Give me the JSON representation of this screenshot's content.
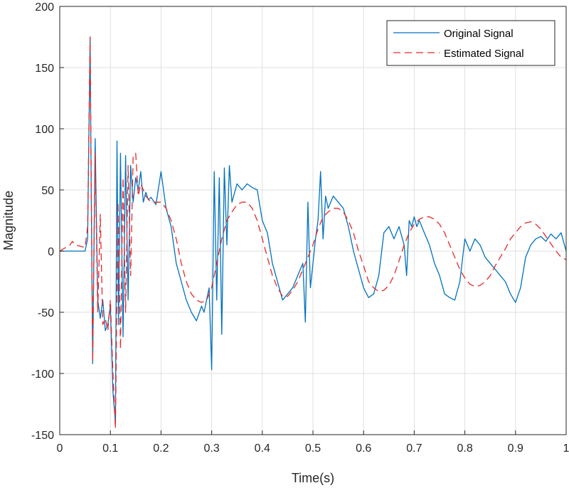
{
  "chart_data": {
    "type": "line",
    "title": "",
    "xlabel": "Time(s)",
    "ylabel": "Magnitude",
    "xlim": [
      0,
      1
    ],
    "ylim": [
      -150,
      200
    ],
    "xticks": [
      0,
      0.1,
      0.2,
      0.3,
      0.4,
      0.5,
      0.6,
      0.7,
      0.8,
      0.9,
      1
    ],
    "xtick_labels": [
      "0",
      "0.1",
      "0.2",
      "0.3",
      "0.4",
      "0.5",
      "0.6",
      "0.7",
      "0.8",
      "0.9",
      "1"
    ],
    "yticks": [
      -150,
      -100,
      -50,
      0,
      50,
      100,
      150,
      200
    ],
    "ytick_labels": [
      "-150",
      "-100",
      "-50",
      "0",
      "50",
      "100",
      "150",
      "200"
    ],
    "grid": true,
    "legend_position": "top-right",
    "colors": {
      "original": "#0072BD",
      "estimated": "#E8282B",
      "grid": "#DFDFDF",
      "axis": "#262626"
    },
    "series": [
      {
        "name": "Original Signal",
        "style": "solid",
        "color": "#0072BD",
        "x": [
          0,
          0.05,
          0.055,
          0.06,
          0.062,
          0.065,
          0.07,
          0.075,
          0.08,
          0.085,
          0.09,
          0.095,
          0.1,
          0.105,
          0.11,
          0.113,
          0.116,
          0.12,
          0.125,
          0.13,
          0.135,
          0.14,
          0.145,
          0.15,
          0.155,
          0.16,
          0.165,
          0.17,
          0.175,
          0.18,
          0.19,
          0.2,
          0.21,
          0.22,
          0.23,
          0.24,
          0.25,
          0.26,
          0.27,
          0.28,
          0.285,
          0.29,
          0.295,
          0.3,
          0.305,
          0.31,
          0.315,
          0.32,
          0.325,
          0.33,
          0.335,
          0.34,
          0.35,
          0.36,
          0.37,
          0.38,
          0.39,
          0.4,
          0.41,
          0.42,
          0.43,
          0.44,
          0.45,
          0.46,
          0.47,
          0.48,
          0.485,
          0.49,
          0.495,
          0.5,
          0.505,
          0.51,
          0.515,
          0.52,
          0.525,
          0.53,
          0.54,
          0.55,
          0.56,
          0.57,
          0.58,
          0.59,
          0.6,
          0.61,
          0.62,
          0.63,
          0.64,
          0.65,
          0.66,
          0.67,
          0.68,
          0.685,
          0.69,
          0.695,
          0.7,
          0.705,
          0.71,
          0.72,
          0.73,
          0.74,
          0.75,
          0.76,
          0.77,
          0.78,
          0.79,
          0.8,
          0.81,
          0.82,
          0.83,
          0.84,
          0.85,
          0.86,
          0.87,
          0.88,
          0.89,
          0.9,
          0.91,
          0.92,
          0.93,
          0.94,
          0.95,
          0.96,
          0.97,
          0.98,
          0.99,
          1
        ],
        "y": [
          0,
          0,
          10,
          175,
          60,
          -92,
          92,
          -40,
          -55,
          -40,
          -65,
          -60,
          -45,
          -115,
          -140,
          90,
          -60,
          80,
          -70,
          78,
          -40,
          70,
          40,
          60,
          50,
          65,
          40,
          48,
          42,
          44,
          38,
          65,
          35,
          20,
          -10,
          -25,
          -40,
          -50,
          -57,
          -45,
          -50,
          -40,
          -30,
          -97,
          65,
          -40,
          60,
          -68,
          68,
          5,
          70,
          40,
          55,
          50,
          55,
          52,
          50,
          25,
          15,
          -10,
          -25,
          -40,
          -35,
          -30,
          -20,
          -10,
          -58,
          40,
          -30,
          -10,
          10,
          25,
          65,
          10,
          45,
          35,
          45,
          40,
          35,
          20,
          0,
          -15,
          -30,
          -38,
          -35,
          -20,
          15,
          20,
          10,
          20,
          5,
          -20,
          25,
          20,
          28,
          20,
          25,
          15,
          5,
          -10,
          -20,
          -35,
          -38,
          -40,
          -25,
          10,
          0,
          10,
          5,
          -5,
          -10,
          -15,
          -20,
          -25,
          -35,
          -42,
          -30,
          -5,
          5,
          10,
          12,
          8,
          14,
          10,
          15,
          0
        ],
        "y_alt": null
      },
      {
        "name": "Estimated Signal",
        "style": "dashed",
        "color": "#E8282B",
        "x": [
          0,
          0.02,
          0.025,
          0.03,
          0.05,
          0.055,
          0.06,
          0.065,
          0.07,
          0.075,
          0.08,
          0.085,
          0.09,
          0.095,
          0.1,
          0.105,
          0.11,
          0.115,
          0.12,
          0.125,
          0.13,
          0.135,
          0.14,
          0.145,
          0.15,
          0.155,
          0.16,
          0.165,
          0.17,
          0.18,
          0.19,
          0.2,
          0.21,
          0.22,
          0.23,
          0.24,
          0.25,
          0.26,
          0.27,
          0.28,
          0.29,
          0.3,
          0.31,
          0.32,
          0.33,
          0.34,
          0.35,
          0.36,
          0.37,
          0.38,
          0.39,
          0.4,
          0.41,
          0.42,
          0.43,
          0.44,
          0.45,
          0.46,
          0.47,
          0.48,
          0.49,
          0.5,
          0.51,
          0.52,
          0.53,
          0.54,
          0.55,
          0.56,
          0.57,
          0.58,
          0.59,
          0.6,
          0.61,
          0.62,
          0.63,
          0.64,
          0.65,
          0.66,
          0.67,
          0.68,
          0.69,
          0.7,
          0.71,
          0.72,
          0.73,
          0.74,
          0.75,
          0.76,
          0.77,
          0.78,
          0.79,
          0.8,
          0.81,
          0.82,
          0.83,
          0.84,
          0.85,
          0.86,
          0.87,
          0.88,
          0.89,
          0.9,
          0.91,
          0.92,
          0.93,
          0.94,
          0.95,
          0.96,
          0.97,
          0.98,
          0.99,
          1
        ],
        "y": [
          0,
          5,
          8,
          5,
          3,
          20,
          175,
          -90,
          80,
          -50,
          30,
          -60,
          -55,
          -65,
          -40,
          -100,
          -145,
          40,
          -80,
          60,
          -50,
          70,
          -20,
          78,
          80,
          45,
          55,
          50,
          45,
          40,
          40,
          40,
          35,
          25,
          10,
          -10,
          -25,
          -35,
          -40,
          -42,
          -40,
          -30,
          -10,
          10,
          25,
          32,
          38,
          40,
          40,
          35,
          25,
          10,
          -5,
          -20,
          -30,
          -37,
          -37,
          -32,
          -25,
          -15,
          -5,
          5,
          18,
          28,
          32,
          35,
          35,
          32,
          25,
          15,
          0,
          -12,
          -25,
          -30,
          -33,
          -32,
          -28,
          -20,
          -8,
          5,
          15,
          22,
          26,
          28,
          28,
          26,
          22,
          15,
          5,
          -5,
          -15,
          -22,
          -27,
          -29,
          -28,
          -25,
          -20,
          -12,
          -5,
          2,
          10,
          15,
          20,
          23,
          24,
          22,
          18,
          12,
          6,
          0,
          -5,
          -7
        ]
      }
    ]
  }
}
